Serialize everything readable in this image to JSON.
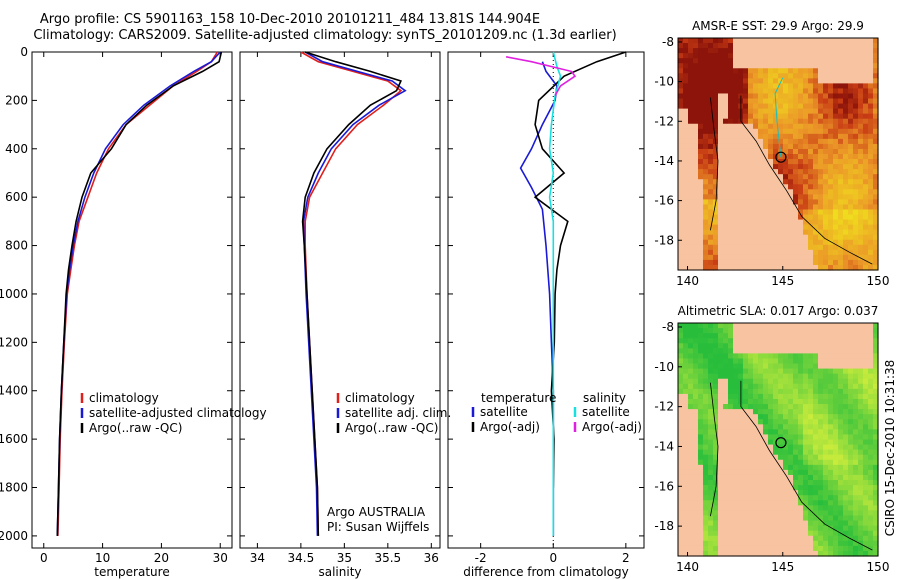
{
  "header": {
    "line1": "Argo profile: CS 5901163_158 10-Dec-2010 20101211_484 13.81S 144.904E",
    "line2": "Climatology: CARS2009. Satellite-adjusted climatology: synTS_20101209.nc (1.3d earlier)"
  },
  "side_label": "CSIRO 15-Dec-2010 10:31:38",
  "colors": {
    "climatology": "#e0201c",
    "satellite": "#1a1ad6",
    "argo": "#000000",
    "argo_adj": "#e020e0",
    "sat_sal": "#18e0e0"
  },
  "chart_data": [
    {
      "type": "line",
      "title": "",
      "xlabel": "temperature",
      "ylabel": "",
      "xlim": [
        -2,
        32
      ],
      "ylim": [
        2050,
        0
      ],
      "xticks": [
        0,
        10,
        20,
        30
      ],
      "yticks": [
        0,
        200,
        400,
        600,
        800,
        1000,
        1200,
        1400,
        1600,
        1800,
        2000
      ],
      "legend": [
        "climatology",
        "satellite-adjusted climatology",
        "Argo(..raw -QC)"
      ],
      "series": [
        {
          "name": "climatology",
          "color": "#e0201c",
          "x": [
            29.5,
            28.5,
            26,
            22,
            18,
            14,
            11,
            9,
            7.5,
            6,
            5.2,
            4.6,
            4,
            3.5,
            3.1,
            2.8,
            2.6,
            2.4
          ],
          "y": [
            0,
            40,
            80,
            140,
            220,
            300,
            400,
            500,
            600,
            700,
            800,
            900,
            1000,
            1200,
            1400,
            1600,
            1800,
            2000
          ]
        },
        {
          "name": "satellite-adjusted climatology",
          "color": "#1a1ad6",
          "x": [
            30,
            28.5,
            25.5,
            21.5,
            17,
            13.5,
            10.5,
            8.5,
            7,
            5.8,
            5,
            4.4,
            3.9,
            3.4,
            3,
            2.7,
            2.5,
            2.3
          ],
          "y": [
            0,
            40,
            80,
            140,
            220,
            300,
            400,
            500,
            600,
            700,
            800,
            900,
            1000,
            1200,
            1400,
            1600,
            1800,
            2000
          ]
        },
        {
          "name": "Argo(..raw -QC)",
          "color": "#000000",
          "x": [
            30.2,
            29.8,
            27,
            22,
            17.5,
            14,
            11.5,
            8,
            6.5,
            5.5,
            4.8,
            4.2,
            3.8,
            3.4,
            3,
            2.7,
            2.5,
            2.3
          ],
          "y": [
            0,
            40,
            80,
            140,
            220,
            300,
            400,
            500,
            600,
            700,
            800,
            900,
            1000,
            1200,
            1400,
            1600,
            1800,
            2000
          ]
        }
      ]
    },
    {
      "type": "line",
      "xlabel": "salinity",
      "xlim": [
        33.8,
        36.1
      ],
      "ylim": [
        2050,
        0
      ],
      "xticks": [
        34,
        34.5,
        35,
        35.5,
        36
      ],
      "legend": [
        "climatology",
        "satellite adj. clim.",
        "Argo(..raw -QC)"
      ],
      "annotation": [
        "Argo AUSTRALIA",
        "PI: Susan Wijffels"
      ],
      "series": [
        {
          "name": "climatology",
          "color": "#e0201c",
          "x": [
            34.5,
            34.7,
            35.1,
            35.5,
            35.65,
            35.45,
            35.15,
            34.9,
            34.75,
            34.6,
            34.55,
            34.55,
            34.57,
            34.6,
            34.63,
            34.66,
            34.69,
            34.7
          ],
          "y": [
            0,
            40,
            80,
            120,
            160,
            220,
            300,
            400,
            500,
            600,
            700,
            800,
            1000,
            1200,
            1400,
            1600,
            1800,
            2000
          ]
        },
        {
          "name": "satellite adj. clim.",
          "color": "#1a1ad6",
          "x": [
            34.55,
            34.75,
            35.15,
            35.55,
            35.7,
            35.4,
            35.1,
            34.85,
            34.7,
            34.58,
            34.53,
            34.54,
            34.56,
            34.59,
            34.62,
            34.65,
            34.68,
            34.69
          ],
          "y": [
            0,
            40,
            80,
            120,
            160,
            220,
            300,
            400,
            500,
            600,
            700,
            800,
            1000,
            1200,
            1400,
            1600,
            1800,
            2000
          ]
        },
        {
          "name": "Argo(..raw -QC)",
          "color": "#000000",
          "x": [
            34.55,
            34.9,
            35.3,
            35.65,
            35.6,
            35.3,
            35.05,
            34.8,
            34.65,
            34.55,
            34.52,
            34.54,
            34.57,
            34.6,
            34.63,
            34.66,
            34.69,
            34.7
          ],
          "y": [
            0,
            40,
            80,
            120,
            160,
            220,
            300,
            400,
            500,
            600,
            700,
            800,
            1000,
            1200,
            1400,
            1600,
            1800,
            2000
          ]
        }
      ]
    },
    {
      "type": "line",
      "xlabel": "difference from climatology",
      "xlim": [
        -2.9,
        2.5
      ],
      "ylim": [
        2050,
        0
      ],
      "xticks": [
        -2,
        0,
        2
      ],
      "legend_groups": [
        {
          "title": "temperature",
          "items": [
            "satellite",
            "Argo(-adj)"
          ]
        },
        {
          "title": "salinity",
          "items": [
            "satellite",
            "Argo(-adj)"
          ]
        }
      ],
      "series": [
        {
          "name": "temperature satellite",
          "color": "#1a1ad6",
          "x": [
            -0.3,
            -0.2,
            0.1,
            0.05,
            -0.3,
            -0.6,
            -0.9,
            -0.6,
            -0.3,
            -0.2,
            -0.1,
            -0.05,
            0,
            0,
            0,
            0
          ],
          "y": [
            40,
            80,
            140,
            200,
            300,
            400,
            480,
            560,
            650,
            800,
            1000,
            1200,
            1400,
            1600,
            1800,
            2000
          ]
        },
        {
          "name": "temperature Argo(-adj)",
          "color": "#000000",
          "x": [
            2,
            1.2,
            0.3,
            -0.4,
            -0.5,
            -0.3,
            0.3,
            -0.5,
            0.4,
            0.2,
            0.1,
            0.05,
            0.03,
            -0.05,
            0.02,
            0
          ],
          "y": [
            0,
            40,
            100,
            200,
            300,
            400,
            500,
            600,
            700,
            800,
            900,
            1000,
            1200,
            1400,
            1600,
            1800
          ]
        },
        {
          "name": "salinity satellite",
          "color": "#18e0e0",
          "x": [
            0,
            0.1,
            0.2,
            0.05,
            -0.05,
            -0.1,
            0,
            -0.1,
            0,
            0,
            0,
            0,
            0,
            0,
            0
          ],
          "y": [
            0,
            60,
            100,
            180,
            300,
            400,
            500,
            600,
            700,
            800,
            1000,
            1200,
            1400,
            1600,
            2000
          ]
        },
        {
          "name": "salinity Argo(-adj)",
          "color": "#e020e0",
          "x": [
            -1.3,
            -0.6,
            0.5,
            0.6,
            0.2,
            0.05
          ],
          "y": [
            20,
            40,
            80,
            100,
            140,
            180
          ]
        }
      ]
    },
    {
      "type": "heatmap",
      "title": "AMSR-E SST: 29.9 Argo: 29.9",
      "xlim": [
        139.5,
        150
      ],
      "ylim": [
        -19.5,
        -7.8
      ],
      "xticks": [
        140,
        145,
        150
      ],
      "yticks": [
        -8,
        -10,
        -12,
        -14,
        -16,
        -18
      ],
      "marker": {
        "lon": 144.904,
        "lat": -13.81
      }
    },
    {
      "type": "heatmap",
      "title": "Altimetric SLA: 0.017 Argo: 0.037",
      "xlim": [
        139.5,
        150
      ],
      "ylim": [
        -19.5,
        -7.8
      ],
      "xticks": [
        140,
        145,
        150
      ],
      "yticks": [
        -8,
        -10,
        -12,
        -14,
        -16,
        -18
      ],
      "marker": {
        "lon": 144.904,
        "lat": -13.81
      }
    }
  ]
}
